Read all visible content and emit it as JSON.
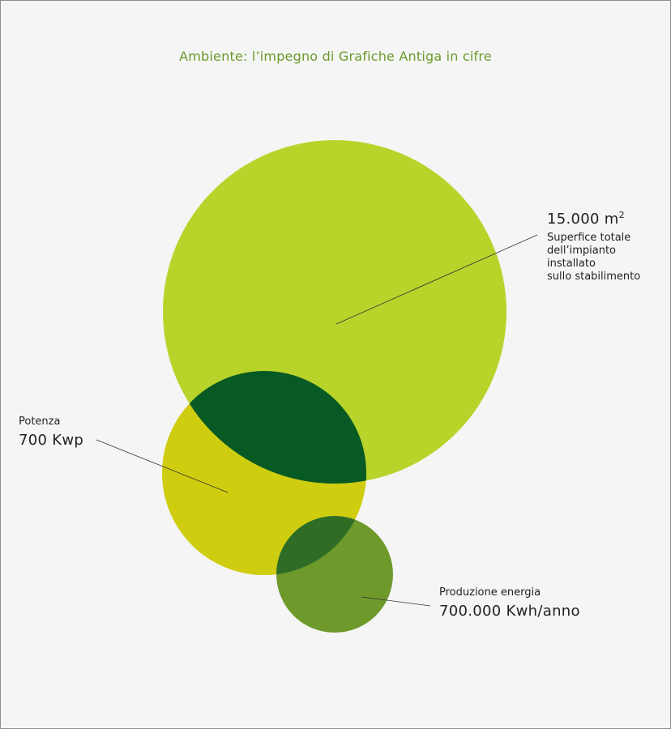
{
  "title": "Ambiente: l’impegno di Grafiche Antiga in cifre",
  "colors": {
    "background": "#f5f5f5",
    "title": "#6a9a2a",
    "surface_circle": "#b8d42b",
    "power_circle": "#cfcd10",
    "surface_power_overlap": "#085a24",
    "energy_circle": "#6e9a2c",
    "energy_power_overlap": "#2f6d27",
    "leader_line": "#333333"
  },
  "callouts": {
    "surface": {
      "value": "15.000 m",
      "unit_superscript": "2",
      "desc_line1": "Superfice totale",
      "desc_line2": "dell’impianto",
      "desc_line3": "installato",
      "desc_line4": "sullo stabilimento"
    },
    "power": {
      "caption": "Potenza",
      "value": "700 Kwp"
    },
    "energy": {
      "caption": "Produzione energia",
      "value": "700.000 Kwh/anno"
    }
  }
}
